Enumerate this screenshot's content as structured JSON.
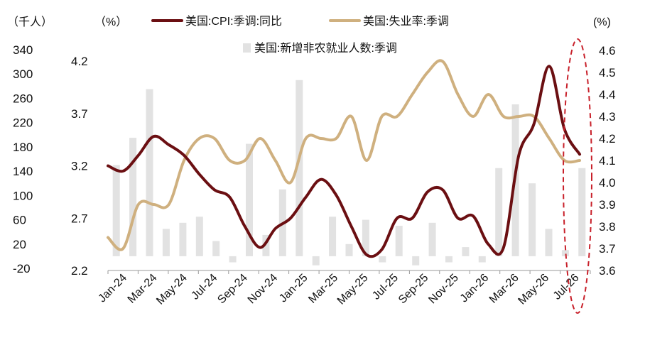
{
  "chart_data": {
    "type": "line",
    "units": {
      "left_outer": "（千人）",
      "left_inner": "（%）",
      "right": "(%)"
    },
    "x_labels": [
      "Jan-24",
      "Mar-24",
      "May-24",
      "Jul-24",
      "Sep-24",
      "Nov-24",
      "Jan-25",
      "Mar-25",
      "May-25",
      "Jul-25",
      "Sep-25",
      "Nov-25",
      "Jan-26",
      "Mar-26",
      "May-26",
      "Jul-26"
    ],
    "y_left_outer": {
      "ticks": [
        "340",
        "300",
        "260",
        "220",
        "180",
        "140",
        "100",
        "60",
        "20",
        "-20"
      ],
      "ylim": [
        -20,
        340
      ]
    },
    "y_left_inner": {
      "ticks": [
        "4.2",
        "3.7",
        "3.2",
        "2.7",
        "2.2"
      ],
      "ylim": [
        2.2,
        4.2
      ]
    },
    "y_right": {
      "ticks": [
        "4.6",
        "4.5",
        "4.4",
        "4.3",
        "4.2",
        "4.1",
        "4.0",
        "3.9",
        "3.8",
        "3.7",
        "3.6"
      ],
      "ylim": [
        3.6,
        4.6
      ]
    },
    "legend": {
      "cpi": "美国:CPI:季调:同比",
      "unemployment": "美国:失业率:季调",
      "payrolls": "美国:新增非农就业人数:季调"
    },
    "colors": {
      "cpi": "#6b0f12",
      "unemployment": "#cfb07f",
      "payrolls": "#e2e2e2",
      "highlight": "#c8202a"
    },
    "series": [
      {
        "name": "美国:新增非农就业人数:季调",
        "type": "bar",
        "axis": "left_outer",
        "values": [
          150,
          195,
          275,
          45,
          55,
          65,
          25,
          -10,
          185,
          35,
          110,
          290,
          -15,
          65,
          20,
          60,
          -10,
          50,
          -15,
          55,
          -10,
          15,
          -10,
          145,
          250,
          120,
          45,
          10,
          145
        ]
      },
      {
        "name": "美国:CPI:季调:同比",
        "type": "line",
        "axis": "left_inner",
        "values": [
          3.2,
          3.15,
          3.3,
          3.48,
          3.4,
          3.3,
          3.12,
          2.97,
          2.9,
          2.62,
          2.42,
          2.6,
          2.7,
          2.9,
          3.07,
          2.92,
          2.62,
          2.35,
          2.4,
          2.7,
          2.7,
          2.95,
          2.97,
          2.7,
          2.72,
          2.45,
          2.42,
          3.3,
          3.6,
          4.15,
          3.55,
          3.31
        ]
      },
      {
        "name": "美国:失业率:季调",
        "type": "line",
        "axis": "right",
        "values": [
          3.75,
          3.7,
          3.9,
          3.9,
          3.9,
          4.1,
          4.2,
          4.2,
          4.1,
          4.1,
          4.2,
          4.1,
          4.0,
          4.2,
          4.2,
          4.2,
          4.3,
          4.1,
          4.3,
          4.3,
          4.4,
          4.5,
          4.55,
          4.4,
          4.3,
          4.4,
          4.3,
          4.3,
          4.3,
          4.2,
          4.1,
          4.1
        ]
      }
    ],
    "annotation": {
      "type": "dashed-ellipse",
      "highlights": "most recent months"
    },
    "grid": false
  }
}
